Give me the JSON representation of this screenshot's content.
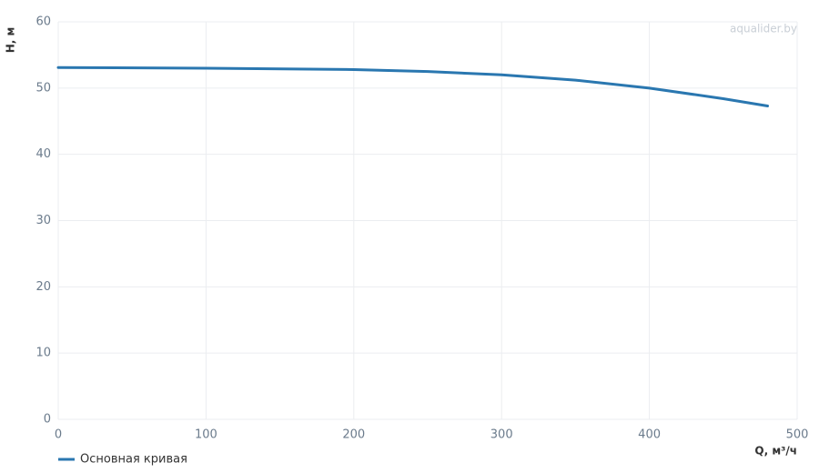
{
  "chart_data": {
    "type": "line",
    "watermark": "aqualider.by",
    "x_label": "Q, м³/ч",
    "y_label": "H, м",
    "x": [
      0,
      100,
      200,
      250,
      300,
      350,
      400,
      450,
      480
    ],
    "series": [
      {
        "name": "Основная кривая",
        "color": "#2a77b0",
        "values": [
          53.1,
          53.0,
          52.8,
          52.5,
          52.0,
          51.2,
          50.0,
          48.4,
          47.3
        ]
      }
    ],
    "xlim": [
      0,
      500
    ],
    "xticks": [
      0,
      100,
      200,
      300,
      400,
      500
    ],
    "ylim": [
      0,
      60
    ],
    "yticks": [
      0,
      10,
      20,
      30,
      40,
      50,
      60
    ],
    "grid": true
  }
}
